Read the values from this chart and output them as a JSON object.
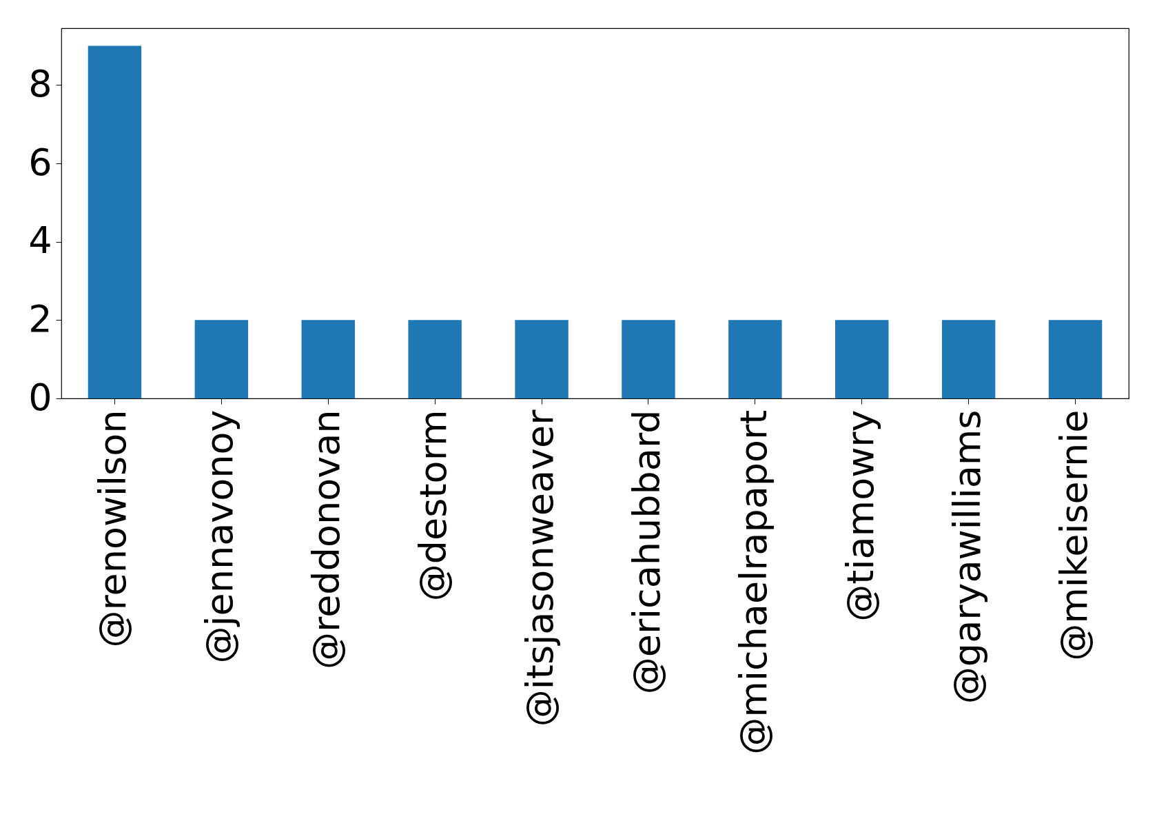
{
  "chart_data": {
    "type": "bar",
    "categories": [
      "@renowilson",
      "@jennavonoy",
      "@reddonovan",
      "@destorm",
      "@itsjasonweaver",
      "@ericahubbard",
      "@michaelrapaport",
      "@tiamowry",
      "@garyawilliams",
      "@mikeisernie"
    ],
    "values": [
      9,
      2,
      2,
      2,
      2,
      2,
      2,
      2,
      2,
      2
    ],
    "color": "#1f77b4",
    "ylim": [
      0,
      9.45
    ],
    "yticks": [
      0,
      2,
      4,
      6,
      8
    ],
    "grid": false
  }
}
